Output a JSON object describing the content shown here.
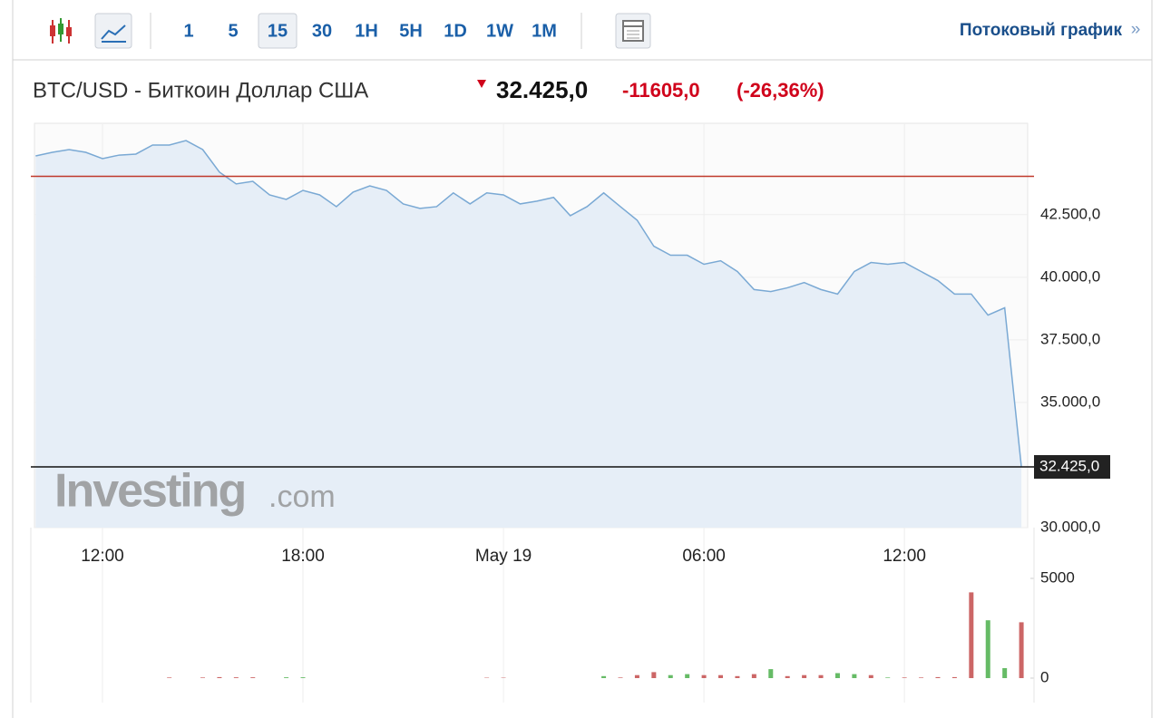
{
  "toolbar": {
    "intervals": [
      "1",
      "5",
      "15",
      "30",
      "1H",
      "5H",
      "1D",
      "1W",
      "1M"
    ],
    "selected": 2,
    "link": "Потоковый график",
    "link_arrow": "»"
  },
  "header": {
    "title": "BTC/USD - Биткоин Доллар США",
    "price": "32.425,0",
    "change": "-11605,0",
    "change_pct": "(-26,36%)"
  },
  "watermark": {
    "main": "Investing",
    "domain": ".com"
  },
  "chart_data": [
    {
      "type": "line",
      "color": "#7aa9d4",
      "area_color": "#e6eef7",
      "categories": [
        null,
        null,
        null,
        null,
        "12:00",
        null,
        null,
        null,
        null,
        null,
        null,
        null,
        null,
        null,
        null,
        null,
        "18:00",
        null,
        null,
        null,
        null,
        null,
        null,
        null,
        null,
        null,
        null,
        null,
        "May 19",
        null,
        null,
        null,
        null,
        null,
        null,
        null,
        null,
        null,
        null,
        null,
        "06:00",
        null,
        null,
        null,
        null,
        null,
        null,
        null,
        null,
        null,
        null,
        null,
        "12:00",
        null,
        null,
        null,
        null,
        null,
        null,
        null
      ],
      "values": [
        44845,
        44990,
        45100,
        44990,
        44740,
        44880,
        44920,
        45280,
        45280,
        45460,
        45100,
        44200,
        43730,
        43830,
        43290,
        43110,
        43470,
        43290,
        42820,
        43400,
        43650,
        43470,
        42930,
        42750,
        42820,
        43370,
        42930,
        43370,
        43290,
        42930,
        43040,
        43190,
        42460,
        42820,
        43370,
        42820,
        42280,
        41240,
        40880,
        40880,
        40520,
        40660,
        40230,
        39510,
        39430,
        39580,
        39790,
        39510,
        39330,
        40230,
        40590,
        40520,
        40590,
        40230,
        39870,
        39330,
        39330,
        38490,
        38780,
        32425
      ],
      "reference_line": {
        "value": 44030,
        "color": "#c0392b"
      },
      "last": {
        "value": 32425,
        "label": "32.425,0"
      },
      "ylim": [
        30000,
        46150
      ],
      "yticks": [
        {
          "value": 30000,
          "label": "30.000,0"
        },
        {
          "value": 35000,
          "label": "35.000,0"
        },
        {
          "value": 37500,
          "label": "37.500,0"
        },
        {
          "value": 40000,
          "label": "40.000,0"
        },
        {
          "value": 42500,
          "label": "42.500,0"
        }
      ],
      "grid": true
    },
    {
      "type": "bar",
      "values": [
        0,
        0,
        0,
        0,
        0,
        0,
        0,
        0,
        30,
        0,
        30,
        50,
        40,
        40,
        0,
        40,
        40,
        0,
        0,
        0,
        0,
        0,
        0,
        0,
        0,
        0,
        0,
        20,
        20,
        0,
        0,
        0,
        0,
        0,
        100,
        30,
        150,
        300,
        150,
        200,
        150,
        150,
        100,
        200,
        450,
        100,
        150,
        150,
        250,
        200,
        150,
        30,
        30,
        30,
        50,
        50,
        4300,
        2900,
        500,
        2800
      ],
      "colors": [
        "#c66",
        "#c66",
        "#c66",
        "#c66",
        "#c66",
        "#c66",
        "#c66",
        "#c66",
        "#c66",
        "#c66",
        "#c66",
        "#c66",
        "#c66",
        "#c66",
        "#c66",
        "#6b6",
        "#6b6",
        "#c66",
        "#c66",
        "#c66",
        "#c66",
        "#c66",
        "#c66",
        "#c66",
        "#c66",
        "#c66",
        "#c66",
        "#c66",
        "#c66",
        "#c66",
        "#c66",
        "#c66",
        "#c66",
        "#c66",
        "#6b6",
        "#c66",
        "#c66",
        "#c66",
        "#6b6",
        "#6b6",
        "#c66",
        "#c66",
        "#c66",
        "#c66",
        "#6b6",
        "#c66",
        "#c66",
        "#c66",
        "#6b6",
        "#6b6",
        "#c66",
        "#6b6",
        "#c66",
        "#c66",
        "#c66",
        "#c66",
        "#c66",
        "#6b6",
        "#6b6",
        "#c66"
      ],
      "ylim": [
        0,
        5000
      ],
      "yticks": [
        0,
        5000
      ]
    }
  ]
}
